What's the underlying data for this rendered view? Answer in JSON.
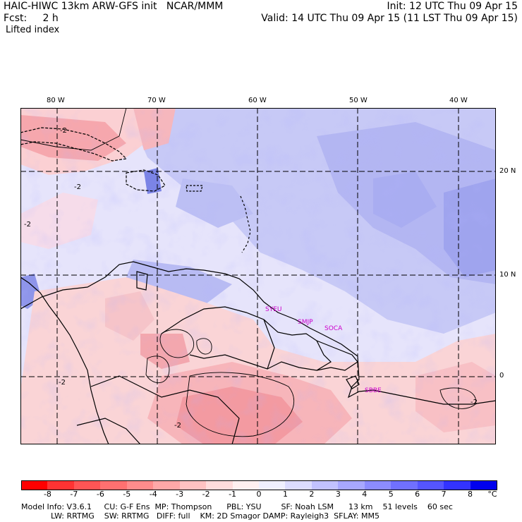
{
  "header": {
    "model_title": "HAIC-HIWC 13km ARW-GFS init   NCAR/MMM",
    "forecast_label": "Fcst:     2 h",
    "field_name": "Lifted index",
    "init_time": "Init: 12 UTC Thu 09 Apr 15",
    "valid_time": "Valid: 14 UTC Thu 09 Apr 15 (11 LST Thu 09 Apr 15)"
  },
  "map": {
    "lon_labels": [
      "80 W",
      "70 W",
      "60 W",
      "50 W",
      "40 W"
    ],
    "lat_labels": [
      "20 N",
      "10 N",
      "0"
    ],
    "contour_labels": [
      "-2",
      "-2",
      "-2",
      "-2",
      "-2",
      "-2"
    ],
    "station_labels": [
      "SYEU",
      "SMJP",
      "SOCA",
      "SBBE"
    ],
    "colors": {
      "land_outline": "#000000",
      "grid": "#000000",
      "station": "#cc00cc",
      "neutral": "#f3f0ff"
    }
  },
  "colorbar": {
    "tick_labels": [
      "-8",
      "-7",
      "-6",
      "-5",
      "-4",
      "-3",
      "-2",
      "-1",
      "0",
      "1",
      "2",
      "3",
      "4",
      "5",
      "6",
      "7",
      "8",
      "°C"
    ],
    "colors": [
      "#ff0000",
      "#ff3333",
      "#ff5555",
      "#ff7070",
      "#ff8c8c",
      "#ffa8a8",
      "#ffc2c2",
      "#ffdcdc",
      "#fff0f0",
      "#f0f0ff",
      "#dcdcff",
      "#c2c2ff",
      "#a8a8ff",
      "#8c8cff",
      "#7070ff",
      "#5555ff",
      "#3333ff",
      "#0000ee"
    ]
  },
  "footer": {
    "line1": "Model Info: V3.6.1     CU: G-F Ens  MP: Thompson      PBL: YSU        SF: Noah LSM      13 km    51 levels    60 sec",
    "line2": "            LW: RRTMG    SW: RRTMG   DIFF: full    KM: 2D Smagor DAMP: Rayleigh3  SFLAY: MM5"
  }
}
